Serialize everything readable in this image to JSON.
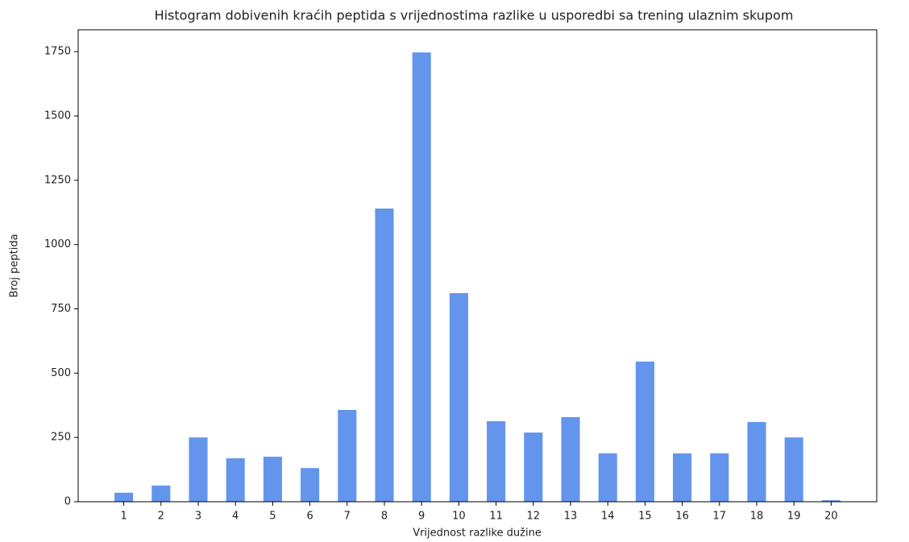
{
  "chart_data": {
    "type": "bar",
    "title": "Histogram dobivenih kraćih peptida s vrijednostima razlike u usporedbi sa trening ulaznim skupom",
    "xlabel": "Vrijednost razlike dužine",
    "ylabel": "Broj peptida",
    "x": [
      1,
      2,
      3,
      4,
      5,
      6,
      7,
      8,
      9,
      10,
      11,
      12,
      13,
      14,
      15,
      16,
      17,
      18,
      19,
      20
    ],
    "values": [
      35,
      63,
      250,
      169,
      175,
      131,
      357,
      1140,
      1747,
      811,
      313,
      269,
      329,
      188,
      545,
      188,
      188,
      310,
      250,
      6
    ],
    "color": "#6495ed",
    "xlim": [
      -0.225,
      21.225
    ],
    "xticks": [
      1,
      2,
      3,
      4,
      5,
      6,
      7,
      8,
      9,
      10,
      11,
      12,
      13,
      14,
      15,
      16,
      17,
      18,
      19,
      20
    ],
    "ylim": [
      0,
      1835
    ],
    "yticks": [
      0,
      250,
      500,
      750,
      1000,
      1250,
      1500,
      1750
    ],
    "grid": false
  }
}
